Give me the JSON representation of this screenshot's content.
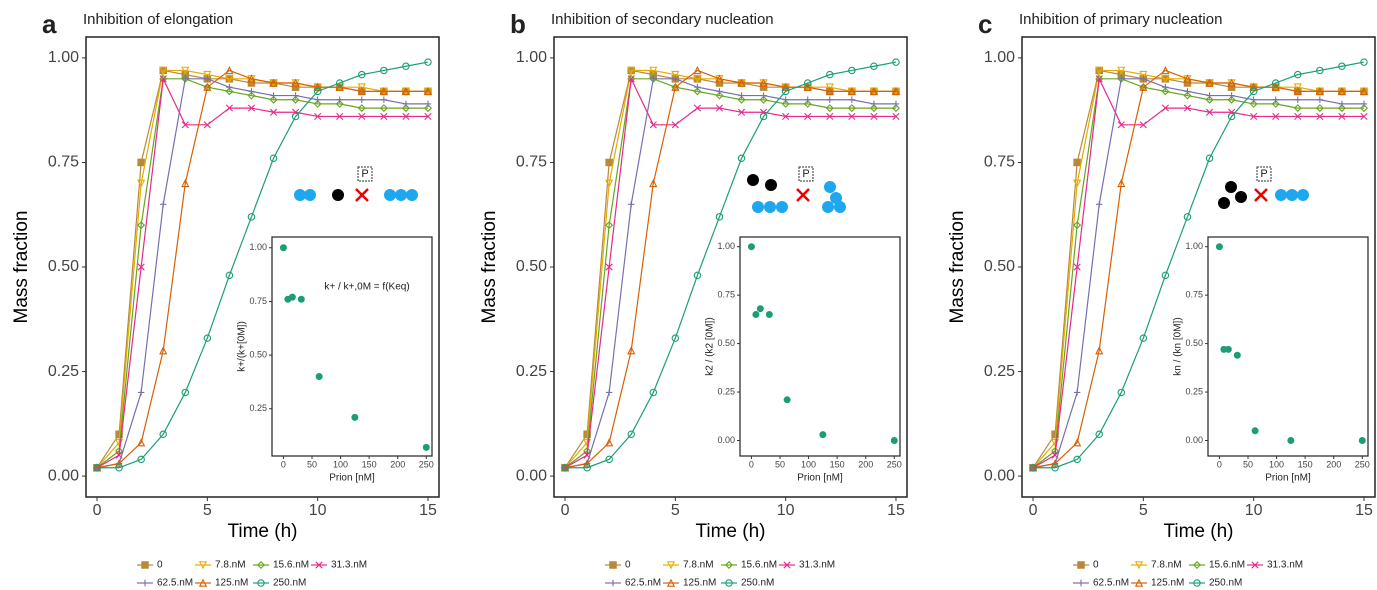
{
  "chart_data": [
    {
      "type": "line",
      "panel_label": "a",
      "title": "Inhibition of elongation",
      "x_label": "Time (h)",
      "y_label": "Mass fraction",
      "x": [
        0,
        1,
        2,
        3,
        4,
        5,
        6,
        7,
        8,
        9,
        10,
        11,
        12,
        13,
        14,
        15
      ],
      "xlim": [
        -0.5,
        15.5
      ],
      "xticks": [
        0,
        5,
        10,
        15
      ],
      "ylim": [
        -0.05,
        1.05
      ],
      "yticks": [
        {
          "value": 0,
          "label": "0.00"
        },
        {
          "value": 0.25,
          "label": "0.25"
        },
        {
          "value": 0.5,
          "label": "0.50"
        },
        {
          "value": 0.75,
          "label": "0.75"
        },
        {
          "value": 1,
          "label": "1.00"
        }
      ],
      "series": [
        {
          "name": "0",
          "color": "#b8893c",
          "values": [
            0.02,
            0.1,
            0.75,
            0.97,
            0.96,
            0.95,
            0.95,
            0.94,
            0.94,
            0.93,
            0.93,
            0.93,
            0.92,
            0.92,
            0.92,
            0.92
          ]
        },
        {
          "name": "7.8.nM",
          "color": "#e6ab02",
          "values": [
            0.02,
            0.08,
            0.7,
            0.97,
            0.97,
            0.96,
            0.95,
            0.95,
            0.94,
            0.94,
            0.93,
            0.93,
            0.93,
            0.92,
            0.92,
            0.92
          ]
        },
        {
          "name": "15.6.nM",
          "color": "#66a61e",
          "values": [
            0.02,
            0.06,
            0.6,
            0.95,
            0.95,
            0.93,
            0.92,
            0.91,
            0.9,
            0.9,
            0.89,
            0.89,
            0.88,
            0.88,
            0.88,
            0.88
          ]
        },
        {
          "name": "31.3.nM",
          "color": "#e7298a",
          "values": [
            0.02,
            0.05,
            0.5,
            0.95,
            0.84,
            0.84,
            0.88,
            0.88,
            0.87,
            0.87,
            0.86,
            0.86,
            0.86,
            0.86,
            0.86,
            0.86
          ]
        },
        {
          "name": "62.5.nM",
          "color": "#7570b3",
          "values": [
            0.02,
            0.03,
            0.2,
            0.65,
            0.95,
            0.95,
            0.93,
            0.92,
            0.91,
            0.91,
            0.9,
            0.9,
            0.9,
            0.9,
            0.89,
            0.89
          ]
        },
        {
          "name": "125.nM",
          "color": "#d95f02",
          "values": [
            0.02,
            0.03,
            0.08,
            0.3,
            0.7,
            0.93,
            0.97,
            0.95,
            0.94,
            0.94,
            0.93,
            0.93,
            0.92,
            0.92,
            0.92,
            0.92
          ]
        },
        {
          "name": "250.nM",
          "color": "#1b9e77",
          "values": [
            0.02,
            0.02,
            0.04,
            0.1,
            0.2,
            0.33,
            0.48,
            0.62,
            0.76,
            0.86,
            0.92,
            0.94,
            0.96,
            0.97,
            0.98,
            0.99
          ]
        }
      ],
      "schematic_label": "P",
      "inset": {
        "type": "scatter",
        "x_label": "Prion [nM]",
        "y_label": "k+/(k+[0M])",
        "annotation": "k+ / k+,0M = f(Keq)",
        "color": "#1b9e77",
        "x": [
          0,
          7.8,
          15.6,
          31.3,
          62.5,
          125,
          250
        ],
        "values": [
          1.0,
          0.76,
          0.77,
          0.76,
          0.4,
          0.21,
          0.07
        ],
        "xlim": [
          -20,
          260
        ],
        "xticks": [
          0,
          50,
          100,
          150,
          200,
          250
        ],
        "ylim": [
          0.03,
          1.05
        ],
        "yticks": [
          {
            "value": 0.25,
            "label": "0.25"
          },
          {
            "value": 0.5,
            "label": "0.50"
          },
          {
            "value": 0.75,
            "label": "0.75"
          },
          {
            "value": 1,
            "label": "1.00"
          }
        ]
      }
    },
    {
      "type": "line",
      "panel_label": "b",
      "title": "Inhibition of secondary nucleation",
      "x_label": "Time (h)",
      "y_label": "Mass fraction",
      "x": [
        0,
        1,
        2,
        3,
        4,
        5,
        6,
        7,
        8,
        9,
        10,
        11,
        12,
        13,
        14,
        15
      ],
      "xlim": [
        -0.5,
        15.5
      ],
      "xticks": [
        0,
        5,
        10,
        15
      ],
      "ylim": [
        -0.05,
        1.05
      ],
      "yticks": [
        {
          "value": 0,
          "label": "0.00"
        },
        {
          "value": 0.25,
          "label": "0.25"
        },
        {
          "value": 0.5,
          "label": "0.50"
        },
        {
          "value": 0.75,
          "label": "0.75"
        },
        {
          "value": 1,
          "label": "1.00"
        }
      ],
      "series": [
        {
          "name": "0",
          "color": "#b8893c",
          "values": [
            0.02,
            0.1,
            0.75,
            0.97,
            0.96,
            0.95,
            0.95,
            0.94,
            0.94,
            0.93,
            0.93,
            0.93,
            0.92,
            0.92,
            0.92,
            0.92
          ]
        },
        {
          "name": "7.8.nM",
          "color": "#e6ab02",
          "values": [
            0.02,
            0.08,
            0.7,
            0.97,
            0.97,
            0.96,
            0.95,
            0.95,
            0.94,
            0.94,
            0.93,
            0.93,
            0.93,
            0.92,
            0.92,
            0.92
          ]
        },
        {
          "name": "15.6.nM",
          "color": "#66a61e",
          "values": [
            0.02,
            0.06,
            0.6,
            0.95,
            0.95,
            0.93,
            0.92,
            0.91,
            0.9,
            0.9,
            0.89,
            0.89,
            0.88,
            0.88,
            0.88,
            0.88
          ]
        },
        {
          "name": "31.3.nM",
          "color": "#e7298a",
          "values": [
            0.02,
            0.05,
            0.5,
            0.95,
            0.84,
            0.84,
            0.88,
            0.88,
            0.87,
            0.87,
            0.86,
            0.86,
            0.86,
            0.86,
            0.86,
            0.86
          ]
        },
        {
          "name": "62.5.nM",
          "color": "#7570b3",
          "values": [
            0.02,
            0.03,
            0.2,
            0.65,
            0.95,
            0.95,
            0.93,
            0.92,
            0.91,
            0.91,
            0.9,
            0.9,
            0.9,
            0.9,
            0.89,
            0.89
          ]
        },
        {
          "name": "125.nM",
          "color": "#d95f02",
          "values": [
            0.02,
            0.03,
            0.08,
            0.3,
            0.7,
            0.93,
            0.97,
            0.95,
            0.94,
            0.94,
            0.93,
            0.93,
            0.92,
            0.92,
            0.92,
            0.92
          ]
        },
        {
          "name": "250.nM",
          "color": "#1b9e77",
          "values": [
            0.02,
            0.02,
            0.04,
            0.1,
            0.2,
            0.33,
            0.48,
            0.62,
            0.76,
            0.86,
            0.92,
            0.94,
            0.96,
            0.97,
            0.98,
            0.99
          ]
        }
      ],
      "schematic_label": "P",
      "inset": {
        "type": "scatter",
        "x_label": "Prion [nM]",
        "y_label": "k2 / (k2 [0M])",
        "color": "#1b9e77",
        "x": [
          0,
          7.8,
          15.6,
          31.3,
          62.5,
          125,
          250
        ],
        "values": [
          1.0,
          0.65,
          0.68,
          0.65,
          0.21,
          0.03,
          0.0
        ],
        "xlim": [
          -20,
          260
        ],
        "xticks": [
          0,
          50,
          100,
          150,
          200,
          250
        ],
        "ylim": [
          -0.08,
          1.05
        ],
        "yticks": [
          {
            "value": 0,
            "label": "0.00"
          },
          {
            "value": 0.25,
            "label": "0.25"
          },
          {
            "value": 0.5,
            "label": "0.50"
          },
          {
            "value": 0.75,
            "label": "0.75"
          },
          {
            "value": 1,
            "label": "1.00"
          }
        ]
      }
    },
    {
      "type": "line",
      "panel_label": "c",
      "title": "Inhibition of primary nucleation",
      "x_label": "Time (h)",
      "y_label": "Mass fraction",
      "x": [
        0,
        1,
        2,
        3,
        4,
        5,
        6,
        7,
        8,
        9,
        10,
        11,
        12,
        13,
        14,
        15
      ],
      "xlim": [
        -0.5,
        15.5
      ],
      "xticks": [
        0,
        5,
        10,
        15
      ],
      "ylim": [
        -0.05,
        1.05
      ],
      "yticks": [
        {
          "value": 0,
          "label": "0.00"
        },
        {
          "value": 0.25,
          "label": "0.25"
        },
        {
          "value": 0.5,
          "label": "0.50"
        },
        {
          "value": 0.75,
          "label": "0.75"
        },
        {
          "value": 1,
          "label": "1.00"
        }
      ],
      "series": [
        {
          "name": "0",
          "color": "#b8893c",
          "values": [
            0.02,
            0.1,
            0.75,
            0.97,
            0.96,
            0.95,
            0.95,
            0.94,
            0.94,
            0.93,
            0.93,
            0.93,
            0.92,
            0.92,
            0.92,
            0.92
          ]
        },
        {
          "name": "7.8.nM",
          "color": "#e6ab02",
          "values": [
            0.02,
            0.08,
            0.7,
            0.97,
            0.97,
            0.96,
            0.95,
            0.95,
            0.94,
            0.94,
            0.93,
            0.93,
            0.93,
            0.92,
            0.92,
            0.92
          ]
        },
        {
          "name": "15.6.nM",
          "color": "#66a61e",
          "values": [
            0.02,
            0.06,
            0.6,
            0.95,
            0.95,
            0.93,
            0.92,
            0.91,
            0.9,
            0.9,
            0.89,
            0.89,
            0.88,
            0.88,
            0.88,
            0.88
          ]
        },
        {
          "name": "31.3.nM",
          "color": "#e7298a",
          "values": [
            0.02,
            0.05,
            0.5,
            0.95,
            0.84,
            0.84,
            0.88,
            0.88,
            0.87,
            0.87,
            0.86,
            0.86,
            0.86,
            0.86,
            0.86,
            0.86
          ]
        },
        {
          "name": "62.5.nM",
          "color": "#7570b3",
          "values": [
            0.02,
            0.03,
            0.2,
            0.65,
            0.95,
            0.95,
            0.93,
            0.92,
            0.91,
            0.91,
            0.9,
            0.9,
            0.9,
            0.9,
            0.89,
            0.89
          ]
        },
        {
          "name": "125.nM",
          "color": "#d95f02",
          "values": [
            0.02,
            0.03,
            0.08,
            0.3,
            0.7,
            0.93,
            0.97,
            0.95,
            0.94,
            0.94,
            0.93,
            0.93,
            0.92,
            0.92,
            0.92,
            0.92
          ]
        },
        {
          "name": "250.nM",
          "color": "#1b9e77",
          "values": [
            0.02,
            0.02,
            0.04,
            0.1,
            0.2,
            0.33,
            0.48,
            0.62,
            0.76,
            0.86,
            0.92,
            0.94,
            0.96,
            0.97,
            0.98,
            0.99
          ]
        }
      ],
      "schematic_label": "P",
      "inset": {
        "type": "scatter",
        "x_label": "Prion [nM]",
        "y_label": "kn / (kn [0M])",
        "color": "#1b9e77",
        "x": [
          0,
          7.8,
          15.6,
          31.3,
          62.5,
          125,
          250
        ],
        "values": [
          1.0,
          0.47,
          0.47,
          0.44,
          0.05,
          0.0,
          0.0
        ],
        "xlim": [
          -20,
          260
        ],
        "xticks": [
          0,
          50,
          100,
          150,
          200,
          250
        ],
        "ylim": [
          -0.08,
          1.05
        ],
        "yticks": [
          {
            "value": 0,
            "label": "0.00"
          },
          {
            "value": 0.25,
            "label": "0.25"
          },
          {
            "value": 0.5,
            "label": "0.50"
          },
          {
            "value": 0.75,
            "label": "0.75"
          },
          {
            "value": 1,
            "label": "1.00"
          }
        ]
      }
    }
  ]
}
